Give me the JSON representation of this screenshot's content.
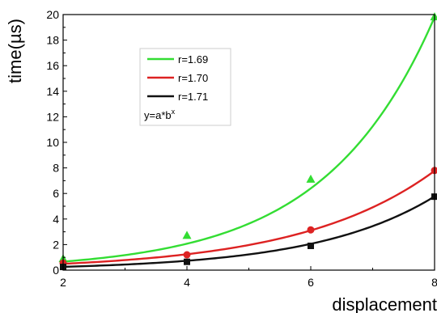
{
  "chart_data": {
    "type": "scatter",
    "xlabel": "displacement",
    "ylabel": "time(µs)",
    "xlim": [
      2,
      8
    ],
    "ylim": [
      0,
      20
    ],
    "x_ticks": [
      "2",
      "4",
      "6",
      "8"
    ],
    "y_ticks": [
      "0",
      "2",
      "4",
      "6",
      "8",
      "10",
      "12",
      "14",
      "16",
      "18",
      "20"
    ],
    "grid": false,
    "legend_position": "top-left",
    "legend_note": "y=a*b",
    "legend_note_sup": "x",
    "series": [
      {
        "name": "r=1.69",
        "color": "#33dd33",
        "marker": "triangle",
        "x": [
          2,
          4,
          6,
          8
        ],
        "y": [
          0.88,
          2.7,
          7.1,
          19.8
        ],
        "fit": {
          "a": 0.216,
          "b": 1.759
        }
      },
      {
        "name": "r=1.70",
        "color": "#dd2222",
        "marker": "circle",
        "x": [
          2,
          4,
          6,
          8
        ],
        "y": [
          0.55,
          1.2,
          3.15,
          7.8
        ],
        "fit": {
          "a": 0.199,
          "b": 1.581
        }
      },
      {
        "name": "r=1.71",
        "color": "#111111",
        "marker": "square",
        "x": [
          2,
          4,
          6,
          8
        ],
        "y": [
          0.25,
          0.65,
          1.9,
          5.75
        ],
        "fit": {
          "a": 0.0935,
          "b": 1.674
        }
      }
    ]
  }
}
